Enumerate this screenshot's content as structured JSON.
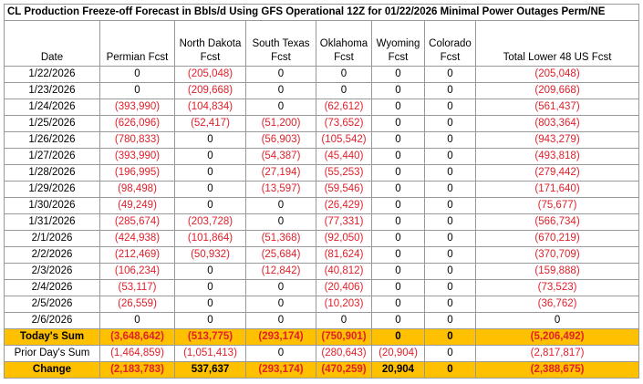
{
  "title": "CL Production Freeze-off Forecast in Bbls/d Using GFS Operational 12Z for 01/22/2026 Minimal Power Outages Perm/NE",
  "table": {
    "headers": [
      [
        "Date"
      ],
      [
        "Permian Fcst"
      ],
      [
        "North Dakota",
        "Fcst"
      ],
      [
        "South Texas",
        "Fcst"
      ],
      [
        "Oklahoma",
        "Fcst"
      ],
      [
        "Wyoming",
        "Fcst"
      ],
      [
        "Colorado",
        "Fcst"
      ],
      [
        "Total Lower 48 US Fcst"
      ]
    ],
    "rows": [
      [
        "1/22/2026",
        "0",
        "(205,048)",
        "0",
        "0",
        "0",
        "0",
        "(205,048)"
      ],
      [
        "1/23/2026",
        "0",
        "(209,668)",
        "0",
        "0",
        "0",
        "0",
        "(209,668)"
      ],
      [
        "1/24/2026",
        "(393,990)",
        "(104,834)",
        "0",
        "(62,612)",
        "0",
        "0",
        "(561,437)"
      ],
      [
        "1/25/2026",
        "(626,096)",
        "(52,417)",
        "(51,200)",
        "(73,652)",
        "0",
        "0",
        "(803,364)"
      ],
      [
        "1/26/2026",
        "(780,833)",
        "0",
        "(56,903)",
        "(105,542)",
        "0",
        "0",
        "(943,279)"
      ],
      [
        "1/27/2026",
        "(393,990)",
        "0",
        "(54,387)",
        "(45,440)",
        "0",
        "0",
        "(493,818)"
      ],
      [
        "1/28/2026",
        "(196,995)",
        "0",
        "(27,194)",
        "(55,253)",
        "0",
        "0",
        "(279,442)"
      ],
      [
        "1/29/2026",
        "(98,498)",
        "0",
        "(13,597)",
        "(59,546)",
        "0",
        "0",
        "(171,640)"
      ],
      [
        "1/30/2026",
        "(49,249)",
        "0",
        "0",
        "(26,429)",
        "0",
        "0",
        "(75,677)"
      ],
      [
        "1/31/2026",
        "(285,674)",
        "(203,728)",
        "0",
        "(77,331)",
        "0",
        "0",
        "(566,734)"
      ],
      [
        "2/1/2026",
        "(424,938)",
        "(101,864)",
        "(51,368)",
        "(92,050)",
        "0",
        "0",
        "(670,219)"
      ],
      [
        "2/2/2026",
        "(212,469)",
        "(50,932)",
        "(25,684)",
        "(81,624)",
        "0",
        "0",
        "(370,709)"
      ],
      [
        "2/3/2026",
        "(106,234)",
        "0",
        "(12,842)",
        "(40,812)",
        "0",
        "0",
        "(159,888)"
      ],
      [
        "2/4/2026",
        "(53,117)",
        "0",
        "0",
        "(20,406)",
        "0",
        "0",
        "(73,523)"
      ],
      [
        "2/5/2026",
        "(26,559)",
        "0",
        "0",
        "(10,203)",
        "0",
        "0",
        "(36,762)"
      ],
      [
        "2/6/2026",
        "0",
        "0",
        "0",
        "0",
        "0",
        "0",
        "0"
      ]
    ],
    "summary_rows": [
      {
        "cells": [
          "Today's Sum",
          "(3,648,642)",
          "(513,775)",
          "(293,174)",
          "(750,901)",
          "0",
          "0",
          "(5,206,492)"
        ],
        "fill": "#ffc000"
      },
      {
        "cells": [
          "Prior Day's Sum",
          "(1,464,859)",
          "(1,051,413)",
          "0",
          "(280,643)",
          "(20,904)",
          "0",
          "(2,817,817)"
        ]
      },
      {
        "cells": [
          "Change",
          "(2,183,783)",
          "537,637",
          "(293,174)",
          "(470,259)",
          "20,904",
          "0",
          "(2,388,675)"
        ],
        "fill": "#ffc000"
      }
    ]
  }
}
